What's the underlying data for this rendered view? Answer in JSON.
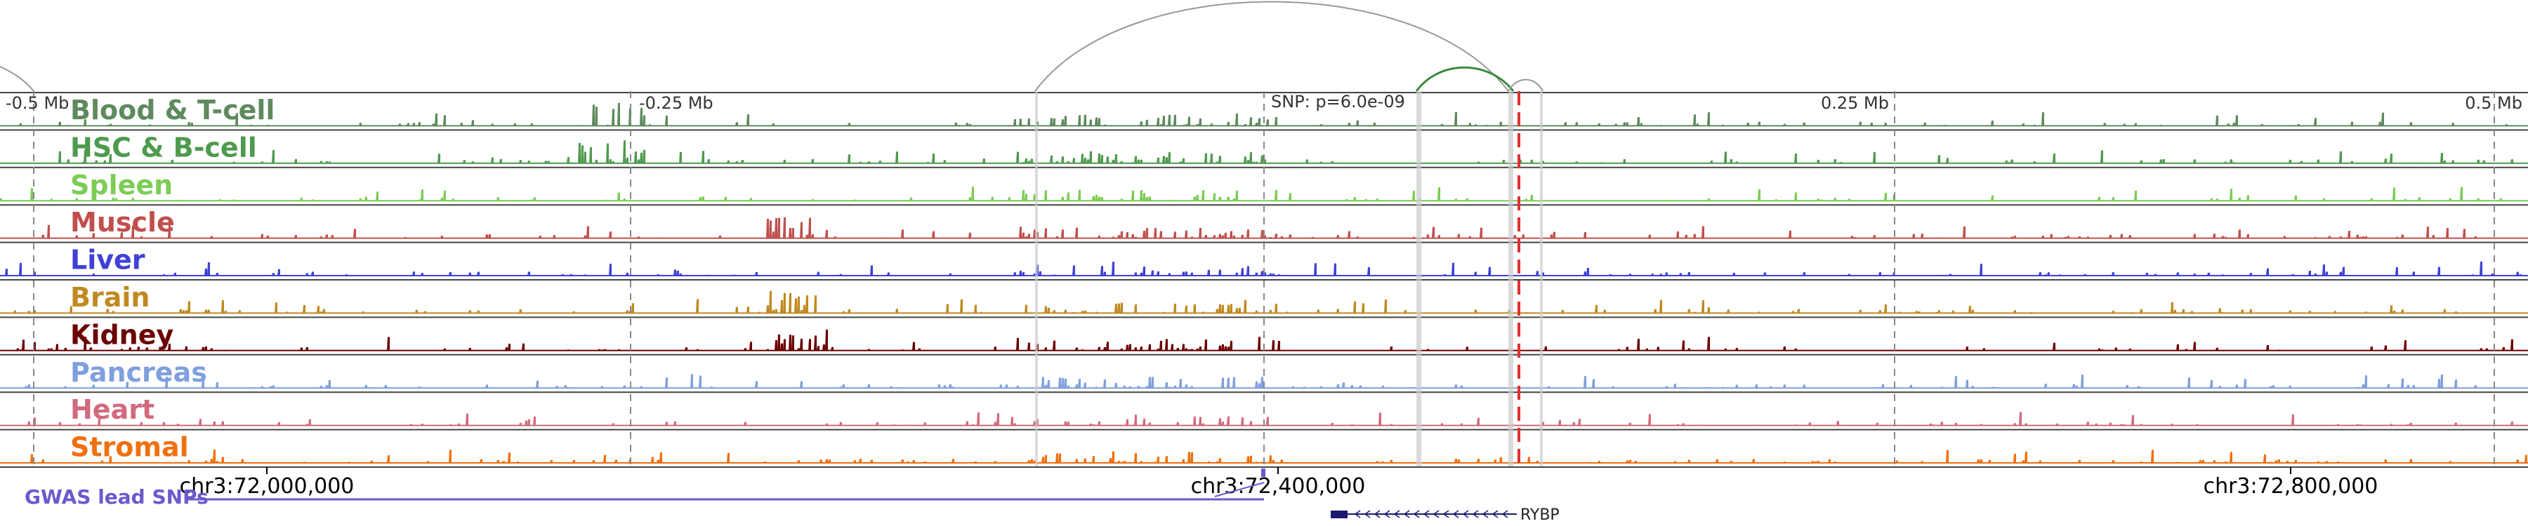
{
  "scale_markers": [
    "-0.5 Mb",
    "-0.25 Mb",
    "0.25 Mb",
    "0.5 Mb"
  ],
  "snp_label": "SNP: p=6.0e-09",
  "tracks": [
    {
      "name": "Blood & T-cell",
      "color": "#5e8a5e"
    },
    {
      "name": "HSC & B-cell",
      "color": "#4e9a4e"
    },
    {
      "name": "Spleen",
      "color": "#7ccc55"
    },
    {
      "name": "Muscle",
      "color": "#c0504d"
    },
    {
      "name": "Liver",
      "color": "#4040d8"
    },
    {
      "name": "Brain",
      "color": "#c08a20"
    },
    {
      "name": "Kidney",
      "color": "#6b0000"
    },
    {
      "name": "Pancreas",
      "color": "#7f9fde"
    },
    {
      "name": "Heart",
      "color": "#d26a7e"
    },
    {
      "name": "Stromal",
      "color": "#f07010"
    }
  ],
  "coordinates": [
    "chr3:72,000,000",
    "chr3:72,400,000",
    "chr3:72,800,000"
  ],
  "gwas_label": "GWAS lead SNPs",
  "gwas_color": "#6a5acd",
  "gene": {
    "name": "RYBP",
    "color": "#1a1a6e"
  },
  "snp_line_color": "#e03030",
  "arc_color": "#3a8a3a"
}
